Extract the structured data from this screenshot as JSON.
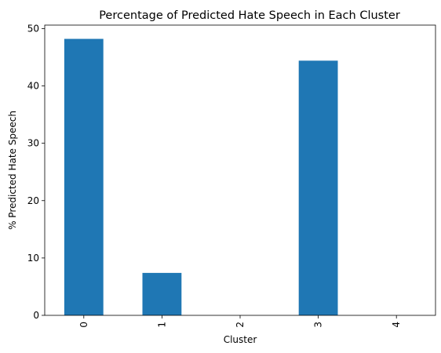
{
  "chart_data": {
    "type": "bar",
    "title": "Percentage of Predicted Hate Speech in Each Cluster",
    "xlabel": "Cluster",
    "ylabel": "% Predicted Hate Speech",
    "categories": [
      "0",
      "1",
      "2",
      "3",
      "4"
    ],
    "values": [
      48.2,
      7.4,
      0,
      44.4,
      0
    ],
    "ylim": [
      0,
      50.6
    ],
    "yticks": [
      0,
      10,
      20,
      30,
      40,
      50
    ],
    "ytick_labels": [
      "0",
      "10",
      "20",
      "30",
      "40",
      "50"
    ],
    "grid": false,
    "bar_color": "#1f77b4"
  }
}
